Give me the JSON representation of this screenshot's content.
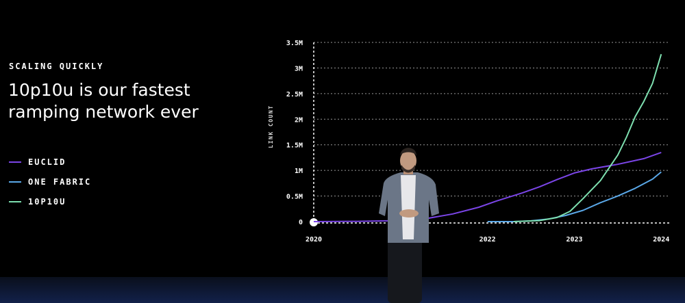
{
  "slide": {
    "eyebrow": "SCALING QUICKLY",
    "headline_line1": "10p10u is our fastest",
    "headline_line2": "ramping network ever"
  },
  "legend": [
    {
      "label": "EUCLID",
      "color": "#7b45e8"
    },
    {
      "label": "ONE FABRIC",
      "color": "#5aa8e8"
    },
    {
      "label": "10P10U",
      "color": "#7ee0b0"
    }
  ],
  "chart_data": {
    "type": "line",
    "ylabel": "LINK COUNT",
    "xlabel": "",
    "ylim": [
      0,
      3500000
    ],
    "xlim": [
      2020,
      2024.1
    ],
    "grid": true,
    "legend_placement": "left",
    "y_ticks": [
      {
        "value": 0,
        "label": "0"
      },
      {
        "value": 500000,
        "label": "0.5M"
      },
      {
        "value": 1000000,
        "label": "1M"
      },
      {
        "value": 1500000,
        "label": "1.5M"
      },
      {
        "value": 2000000,
        "label": "2M"
      },
      {
        "value": 2500000,
        "label": "2.5M"
      },
      {
        "value": 3000000,
        "label": "3M"
      },
      {
        "value": 3500000,
        "label": "3.5M"
      }
    ],
    "x_ticks": [
      {
        "value": 2020,
        "label": "2020"
      },
      {
        "value": 2022,
        "label": "2022"
      },
      {
        "value": 2023,
        "label": "2023"
      },
      {
        "value": 2024,
        "label": "2024"
      }
    ],
    "series": [
      {
        "name": "EUCLID",
        "color": "#7b45e8",
        "x": [
          2020,
          2020.5,
          2021,
          2021.3,
          2021.6,
          2021.9,
          2022.1,
          2022.4,
          2022.6,
          2022.8,
          2023.0,
          2023.2,
          2023.5,
          2023.8,
          2024.0
        ],
        "y": [
          0,
          5000,
          20000,
          60000,
          150000,
          280000,
          400000,
          560000,
          680000,
          820000,
          950000,
          1030000,
          1120000,
          1230000,
          1350000
        ]
      },
      {
        "name": "ONE FABRIC",
        "color": "#5aa8e8",
        "x": [
          2022.0,
          2022.3,
          2022.5,
          2022.7,
          2022.9,
          2023.1,
          2023.3,
          2023.5,
          2023.7,
          2023.9,
          2024.0
        ],
        "y": [
          0,
          0,
          15000,
          50000,
          120000,
          220000,
          370000,
          500000,
          650000,
          830000,
          970000
        ]
      },
      {
        "name": "10P10U",
        "color": "#7ee0b0",
        "x": [
          2022.3,
          2022.6,
          2022.8,
          2022.95,
          2023.1,
          2023.3,
          2023.5,
          2023.6,
          2023.7,
          2023.8,
          2023.9,
          2024.0
        ],
        "y": [
          0,
          20000,
          80000,
          200000,
          450000,
          800000,
          1300000,
          1650000,
          2050000,
          2350000,
          2700000,
          3270000
        ]
      }
    ]
  }
}
